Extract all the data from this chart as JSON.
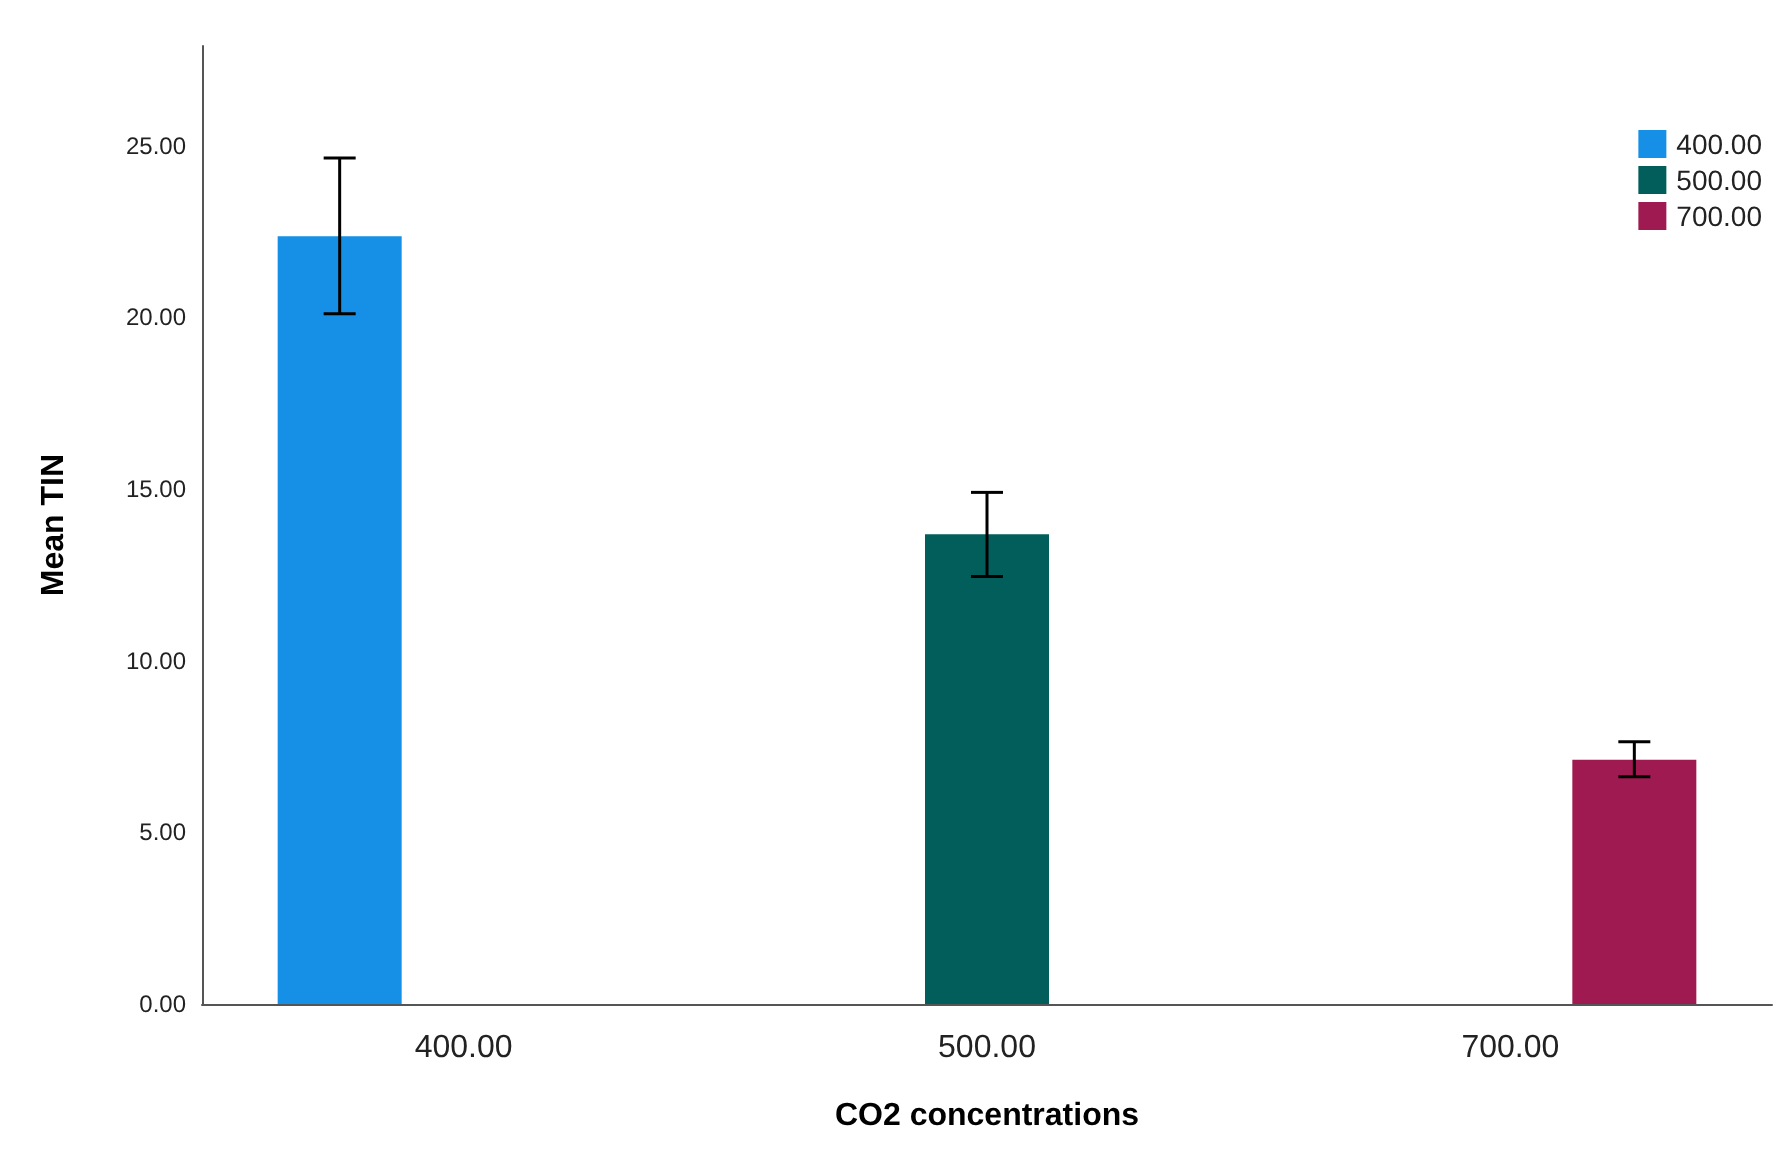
{
  "chart_data": {
    "type": "bar",
    "xlabel": "CO2 concentrations",
    "ylabel": "Mean TIN",
    "categories": [
      "400.00",
      "500.00",
      "700.00"
    ],
    "series": [
      {
        "name": "400.00",
        "color": "#1590e6",
        "values": [
          22.36,
          null,
          null
        ],
        "errors": [
          [
            20.1,
            24.64
          ],
          null,
          null
        ]
      },
      {
        "name": "500.00",
        "color": "#015e5a",
        "values": [
          null,
          13.68,
          null
        ],
        "errors": [
          null,
          [
            12.45,
            14.9
          ],
          null
        ]
      },
      {
        "name": "700.00",
        "color": "#a01a52",
        "values": [
          null,
          null,
          7.11
        ],
        "errors": [
          null,
          null,
          [
            6.62,
            7.64
          ]
        ]
      }
    ],
    "ylim": [
      0,
      27.9
    ],
    "yticks": [
      {
        "value": 0,
        "label": "0.00"
      },
      {
        "value": 5,
        "label": "5.00"
      },
      {
        "value": 10,
        "label": "10.00"
      },
      {
        "value": 15,
        "label": "15.00"
      },
      {
        "value": 20,
        "label": "20.00"
      },
      {
        "value": 25,
        "label": "25.00"
      }
    ],
    "grid": false,
    "legend": "top right"
  }
}
